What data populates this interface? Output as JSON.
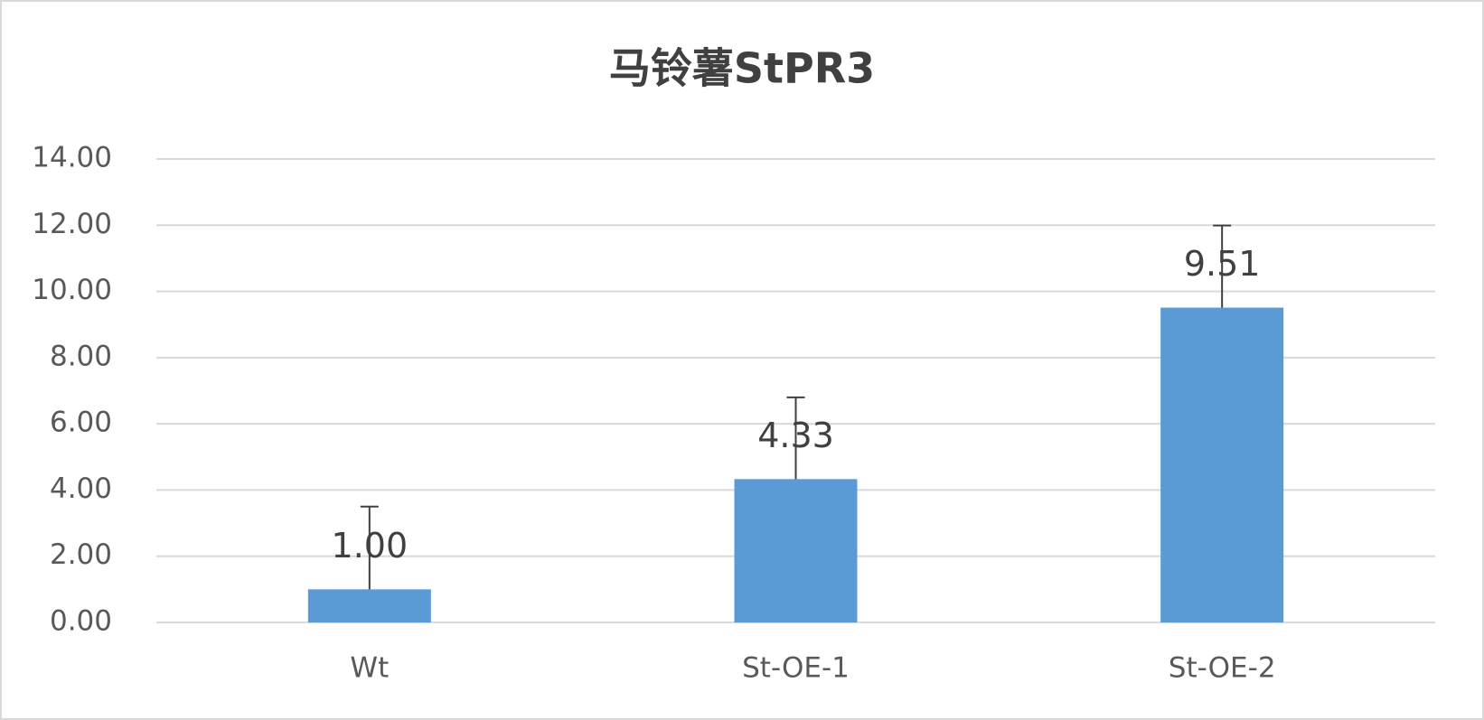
{
  "chart_data": {
    "type": "bar",
    "title": "马铃薯StPR3",
    "categories": [
      "Wt",
      "St-OE-1",
      "St-OE-2"
    ],
    "values": [
      1,
      4.33,
      9.51
    ],
    "value_labels": [
      "1.00",
      "4.33",
      "9.51"
    ],
    "errors": [
      2.5,
      2.47,
      2.48
    ],
    "color": "#5b9bd5",
    "ylim": [
      0,
      14
    ],
    "yticks": [
      {
        "value": 0,
        "label": "0.00"
      },
      {
        "value": 2,
        "label": "2.00"
      },
      {
        "value": 4,
        "label": "4.00"
      },
      {
        "value": 6,
        "label": "6.00"
      },
      {
        "value": 8,
        "label": "8.00"
      },
      {
        "value": 10,
        "label": "10.00"
      },
      {
        "value": 12,
        "label": "12.00"
      },
      {
        "value": 14,
        "label": "14.00"
      }
    ],
    "grid": true
  }
}
